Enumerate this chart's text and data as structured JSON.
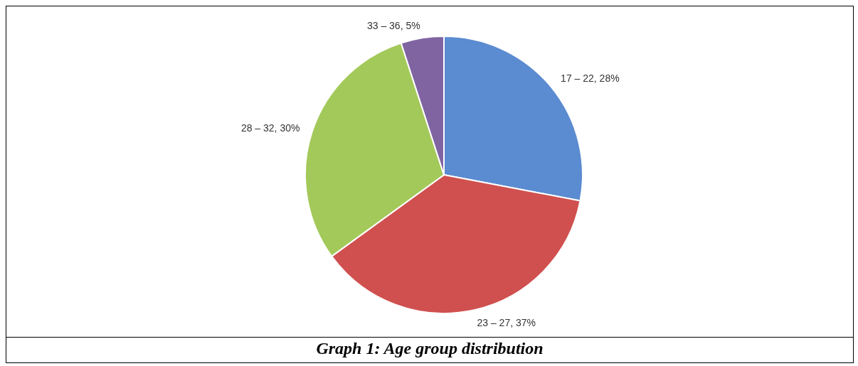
{
  "chart_data": {
    "type": "pie",
    "title": "Graph 1: Age group distribution",
    "categories": [
      "17 – 22",
      "23 – 27",
      "28 – 32",
      "33 – 36"
    ],
    "values": [
      28,
      37,
      30,
      5
    ],
    "colors": [
      "#5b8bd0",
      "#d0504f",
      "#a3c95a",
      "#8064a2"
    ],
    "value_labels": [
      "28%",
      "37%",
      "30%",
      "5%"
    ],
    "legend": false
  }
}
